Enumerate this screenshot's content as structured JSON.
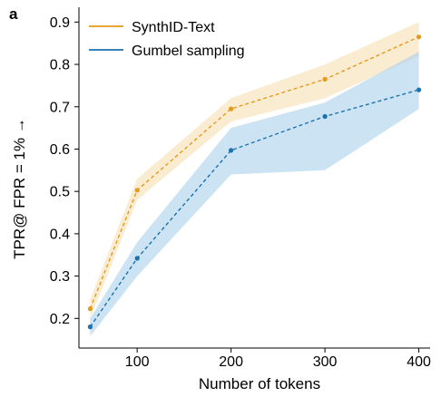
{
  "panel_label": "a",
  "chart_data": {
    "type": "line",
    "xlabel": "Number of tokens",
    "ylabel": "TPR@ FPR = 1% →",
    "xlim": [
      38,
      412
    ],
    "ylim": [
      0.13,
      0.935
    ],
    "x_ticks": [
      100,
      200,
      300,
      400
    ],
    "x_tick_labels": [
      "100",
      "200",
      "300",
      "400"
    ],
    "y_ticks": [
      0.2,
      0.3,
      0.4,
      0.5,
      0.6,
      0.7,
      0.8,
      0.9
    ],
    "y_tick_labels": [
      "0.2",
      "0.3",
      "0.4",
      "0.5",
      "0.6",
      "0.7",
      "0.8",
      "0.9"
    ],
    "grid": false,
    "legend_position": "top-left",
    "series": [
      {
        "name": "SynthID-Text",
        "color": "#e69a1c",
        "band_color": "#f6dfb3",
        "x": [
          50,
          100,
          200,
          300,
          400
        ],
        "values": [
          0.223,
          0.503,
          0.695,
          0.765,
          0.865
        ],
        "lower": [
          0.2,
          0.48,
          0.665,
          0.72,
          0.82
        ],
        "upper": [
          0.245,
          0.53,
          0.72,
          0.8,
          0.9
        ]
      },
      {
        "name": "Gumbel sampling",
        "color": "#1c72b0",
        "band_color": "#a9d0ea",
        "x": [
          50,
          100,
          200,
          300,
          400
        ],
        "values": [
          0.18,
          0.342,
          0.597,
          0.677,
          0.74
        ],
        "lower": [
          0.158,
          0.3,
          0.54,
          0.55,
          0.695
        ],
        "upper": [
          0.2,
          0.38,
          0.65,
          0.71,
          0.83
        ]
      }
    ]
  }
}
